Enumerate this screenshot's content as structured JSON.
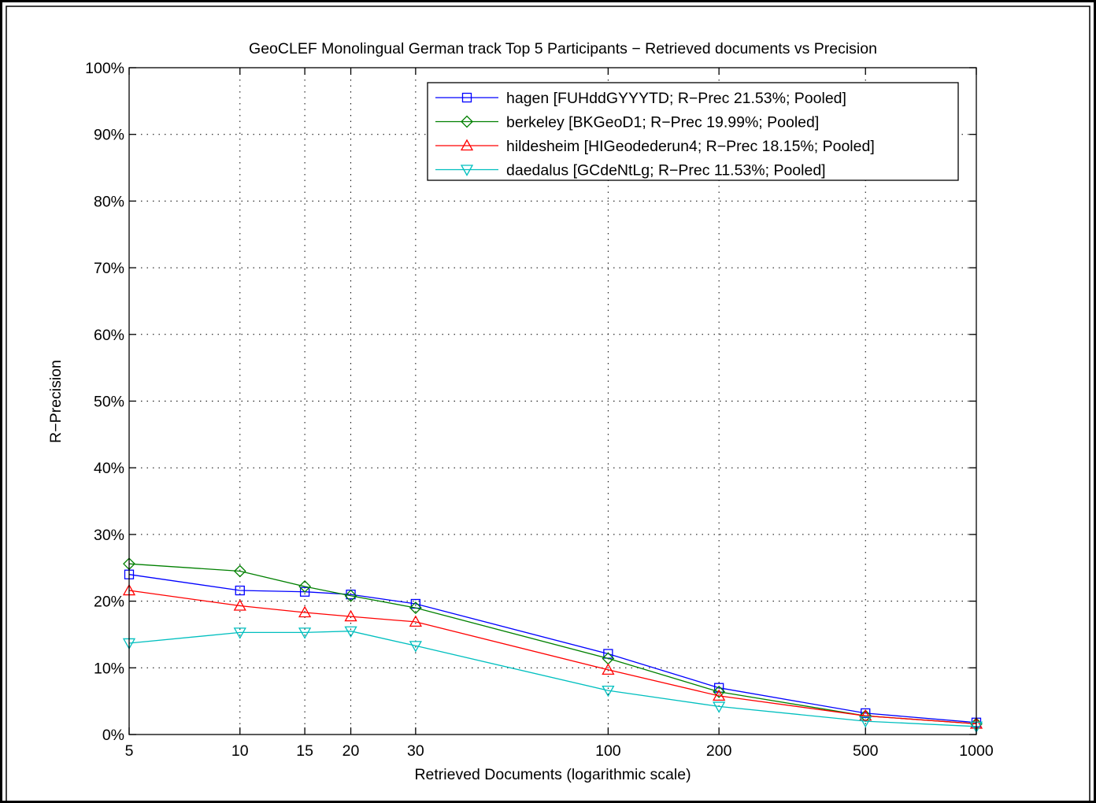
{
  "chart_data": {
    "type": "line",
    "title": "GeoCLEF Monolingual German track Top 5 Participants − Retrieved documents vs Precision",
    "xlabel": "Retrieved Documents (logarithmic scale)",
    "ylabel": "R−Precision",
    "x_scale": "log",
    "xlim": [
      5,
      1000
    ],
    "ylim": [
      0,
      1
    ],
    "x": [
      5,
      10,
      15,
      20,
      30,
      100,
      200,
      500,
      1000
    ],
    "x_tick_labels": [
      "5",
      "10",
      "15",
      "20",
      "30",
      "100",
      "200",
      "500",
      "1000"
    ],
    "y_ticks": [
      0,
      0.1,
      0.2,
      0.3,
      0.4,
      0.5,
      0.6,
      0.7,
      0.8,
      0.9,
      1.0
    ],
    "y_tick_labels": [
      "0%",
      "10%",
      "20%",
      "30%",
      "40%",
      "50%",
      "60%",
      "70%",
      "80%",
      "90%",
      "100%"
    ],
    "grid": true,
    "legend_position": "top-right",
    "series": [
      {
        "name": "hagen [FUHddGYYYTD; R−Prec 21.53%; Pooled]",
        "color": "#0000ff",
        "marker": "square",
        "values": [
          0.24,
          0.216,
          0.214,
          0.21,
          0.196,
          0.121,
          0.07,
          0.032,
          0.018
        ]
      },
      {
        "name": "berkeley [BKGeoD1; R−Prec 19.99%; Pooled]",
        "color": "#008000",
        "marker": "diamond",
        "values": [
          0.256,
          0.245,
          0.222,
          0.208,
          0.19,
          0.114,
          0.064,
          0.028,
          0.016
        ]
      },
      {
        "name": "hildesheim [HIGeodederun4; R−Prec 18.15%; Pooled]",
        "color": "#ff0000",
        "marker": "triangle-up",
        "values": [
          0.216,
          0.193,
          0.183,
          0.177,
          0.169,
          0.097,
          0.058,
          0.028,
          0.016
        ]
      },
      {
        "name": "daedalus [GCdeNtLg; R−Prec 11.53%; Pooled]",
        "color": "#00bfbf",
        "marker": "triangle-down",
        "values": [
          0.137,
          0.153,
          0.153,
          0.155,
          0.133,
          0.066,
          0.042,
          0.02,
          0.012
        ]
      }
    ]
  }
}
